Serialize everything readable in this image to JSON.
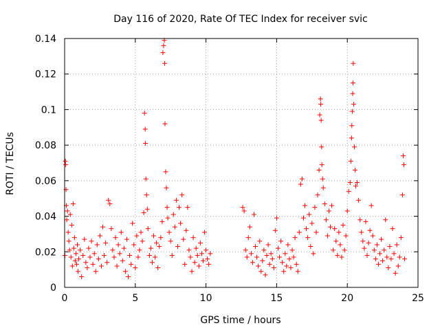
{
  "chart_data": {
    "type": "scatter",
    "title": "Day 116 of 2020, Rate Of TEC Index for receiver svic",
    "xlabel": "GPS time / hours",
    "ylabel": "ROTI / TECUs",
    "xlim": [
      0,
      25
    ],
    "ylim": [
      0,
      0.14
    ],
    "x_ticks": [
      0,
      5,
      10,
      15,
      20,
      25
    ],
    "x_tick_labels": [
      "0",
      "5",
      "10",
      "15",
      "20",
      "25"
    ],
    "y_ticks": [
      0,
      0.02,
      0.04,
      0.06,
      0.08,
      0.1,
      0.12,
      0.14
    ],
    "y_tick_labels": [
      "0",
      "0.02",
      "0.04",
      "0.06",
      "0.08",
      "0.1",
      "0.12",
      "0.14"
    ],
    "grid": true,
    "marker": "+",
    "series": [
      {
        "name": "ROTI",
        "color": "#ff0000",
        "points": [
          [
            0.02,
            0.018
          ],
          [
            0.05,
            0.071
          ],
          [
            0.08,
            0.069
          ],
          [
            0.1,
            0.055
          ],
          [
            0.12,
            0.046
          ],
          [
            0.15,
            0.038
          ],
          [
            0.2,
            0.043
          ],
          [
            0.25,
            0.031
          ],
          [
            0.3,
            0.026
          ],
          [
            0.35,
            0.021
          ],
          [
            0.4,
            0.041
          ],
          [
            0.45,
            0.017
          ],
          [
            0.5,
            0.035
          ],
          [
            0.55,
            0.012
          ],
          [
            0.6,
            0.047
          ],
          [
            0.65,
            0.022
          ],
          [
            0.7,
            0.028
          ],
          [
            0.75,
            0.015
          ],
          [
            0.8,
            0.019
          ],
          [
            0.85,
            0.013
          ],
          [
            0.9,
            0.024
          ],
          [
            0.95,
            0.009
          ],
          [
            1.0,
            0.016
          ],
          [
            1.1,
            0.021
          ],
          [
            1.2,
            0.006
          ],
          [
            1.3,
            0.018
          ],
          [
            1.4,
            0.027
          ],
          [
            1.5,
            0.014
          ],
          [
            1.6,
            0.011
          ],
          [
            1.7,
            0.022
          ],
          [
            1.8,
            0.017
          ],
          [
            1.9,
            0.026
          ],
          [
            2.0,
            0.013
          ],
          [
            2.1,
            0.019
          ],
          [
            2.2,
            0.009
          ],
          [
            2.3,
            0.024
          ],
          [
            2.4,
            0.016
          ],
          [
            2.5,
            0.029
          ],
          [
            2.6,
            0.012
          ],
          [
            2.7,
            0.034
          ],
          [
            2.8,
            0.018
          ],
          [
            2.9,
            0.025
          ],
          [
            3.0,
            0.014
          ],
          [
            3.1,
            0.049
          ],
          [
            3.2,
            0.047
          ],
          [
            3.3,
            0.033
          ],
          [
            3.4,
            0.021
          ],
          [
            3.5,
            0.017
          ],
          [
            3.6,
            0.028
          ],
          [
            3.7,
            0.012
          ],
          [
            3.8,
            0.024
          ],
          [
            3.9,
            0.019
          ],
          [
            4.0,
            0.031
          ],
          [
            4.1,
            0.015
          ],
          [
            4.2,
            0.022
          ],
          [
            4.3,
            0.009
          ],
          [
            4.4,
            0.027
          ],
          [
            4.5,
            0.006
          ],
          [
            4.6,
            0.018
          ],
          [
            4.7,
            0.013
          ],
          [
            4.8,
            0.036
          ],
          [
            4.9,
            0.024
          ],
          [
            5.0,
            0.011
          ],
          [
            5.1,
            0.029
          ],
          [
            5.2,
            0.017
          ],
          [
            5.3,
            0.021
          ],
          [
            5.4,
            0.031
          ],
          [
            5.5,
            0.026
          ],
          [
            5.6,
            0.042
          ],
          [
            5.65,
            0.098
          ],
          [
            5.7,
            0.089
          ],
          [
            5.72,
            0.081
          ],
          [
            5.75,
            0.061
          ],
          [
            5.8,
            0.052
          ],
          [
            5.85,
            0.044
          ],
          [
            5.9,
            0.033
          ],
          [
            6.0,
            0.018
          ],
          [
            6.1,
            0.022
          ],
          [
            6.2,
            0.014
          ],
          [
            6.3,
            0.029
          ],
          [
            6.4,
            0.017
          ],
          [
            6.5,
            0.025
          ],
          [
            6.6,
            0.011
          ],
          [
            6.7,
            0.023
          ],
          [
            6.8,
            0.028
          ],
          [
            6.9,
            0.037
          ],
          [
            6.95,
            0.132
          ],
          [
            7.0,
            0.136
          ],
          [
            7.05,
            0.139
          ],
          [
            7.08,
            0.126
          ],
          [
            7.1,
            0.092
          ],
          [
            7.15,
            0.065
          ],
          [
            7.2,
            0.056
          ],
          [
            7.25,
            0.045
          ],
          [
            7.3,
            0.039
          ],
          [
            7.4,
            0.031
          ],
          [
            7.5,
            0.026
          ],
          [
            7.6,
            0.018
          ],
          [
            7.7,
            0.041
          ],
          [
            7.8,
            0.034
          ],
          [
            7.9,
            0.049
          ],
          [
            8.0,
            0.023
          ],
          [
            8.1,
            0.045
          ],
          [
            8.2,
            0.036
          ],
          [
            8.3,
            0.052
          ],
          [
            8.4,
            0.027
          ],
          [
            8.5,
            0.013
          ],
          [
            8.6,
            0.032
          ],
          [
            8.7,
            0.045
          ],
          [
            8.8,
            0.021
          ],
          [
            8.9,
            0.017
          ],
          [
            9.0,
            0.009
          ],
          [
            9.1,
            0.028
          ],
          [
            9.2,
            0.014
          ],
          [
            9.3,
            0.022
          ],
          [
            9.4,
            0.018
          ],
          [
            9.5,
            0.012
          ],
          [
            9.6,
            0.025
          ],
          [
            9.7,
            0.019
          ],
          [
            9.8,
            0.015
          ],
          [
            9.9,
            0.031
          ],
          [
            10.0,
            0.021
          ],
          [
            10.1,
            0.016
          ],
          [
            10.2,
            0.013
          ],
          [
            10.3,
            0.019
          ],
          [
            12.6,
            0.045
          ],
          [
            12.7,
            0.043
          ],
          [
            12.8,
            0.021
          ],
          [
            12.9,
            0.017
          ],
          [
            13.0,
            0.028
          ],
          [
            13.1,
            0.034
          ],
          [
            13.2,
            0.019
          ],
          [
            13.3,
            0.014
          ],
          [
            13.4,
            0.041
          ],
          [
            13.5,
            0.023
          ],
          [
            13.6,
            0.017
          ],
          [
            13.7,
            0.012
          ],
          [
            13.8,
            0.026
          ],
          [
            13.9,
            0.009
          ],
          [
            14.0,
            0.015
          ],
          [
            14.1,
            0.021
          ],
          [
            14.2,
            0.007
          ],
          [
            14.3,
            0.018
          ],
          [
            14.4,
            0.024
          ],
          [
            14.5,
            0.013
          ],
          [
            14.6,
            0.019
          ],
          [
            14.7,
            0.016
          ],
          [
            14.8,
            0.011
          ],
          [
            14.9,
            0.032
          ],
          [
            15.0,
            0.039
          ],
          [
            15.1,
            0.022
          ],
          [
            15.2,
            0.017
          ],
          [
            15.3,
            0.026
          ],
          [
            15.4,
            0.014
          ],
          [
            15.5,
            0.009
          ],
          [
            15.6,
            0.019
          ],
          [
            15.7,
            0.012
          ],
          [
            15.8,
            0.024
          ],
          [
            15.9,
            0.016
          ],
          [
            16.0,
            0.011
          ],
          [
            16.1,
            0.021
          ],
          [
            16.2,
            0.017
          ],
          [
            16.3,
            0.028
          ],
          [
            16.4,
            0.013
          ],
          [
            16.5,
            0.009
          ],
          [
            16.6,
            0.031
          ],
          [
            16.7,
            0.058
          ],
          [
            16.8,
            0.061
          ],
          [
            16.9,
            0.039
          ],
          [
            17.0,
            0.046
          ],
          [
            17.1,
            0.033
          ],
          [
            17.2,
            0.028
          ],
          [
            17.3,
            0.041
          ],
          [
            17.4,
            0.023
          ],
          [
            17.5,
            0.036
          ],
          [
            17.6,
            0.019
          ],
          [
            17.7,
            0.045
          ],
          [
            17.8,
            0.031
          ],
          [
            17.9,
            0.052
          ],
          [
            18.0,
            0.066
          ],
          [
            18.05,
            0.097
          ],
          [
            18.1,
            0.106
          ],
          [
            18.12,
            0.103
          ],
          [
            18.15,
            0.094
          ],
          [
            18.18,
            0.079
          ],
          [
            18.2,
            0.069
          ],
          [
            18.25,
            0.061
          ],
          [
            18.3,
            0.056
          ],
          [
            18.4,
            0.047
          ],
          [
            18.5,
            0.038
          ],
          [
            18.6,
            0.029
          ],
          [
            18.7,
            0.043
          ],
          [
            18.8,
            0.034
          ],
          [
            18.9,
            0.046
          ],
          [
            19.0,
            0.021
          ],
          [
            19.1,
            0.033
          ],
          [
            19.2,
            0.026
          ],
          [
            19.3,
            0.018
          ],
          [
            19.4,
            0.031
          ],
          [
            19.5,
            0.024
          ],
          [
            19.6,
            0.017
          ],
          [
            19.7,
            0.035
          ],
          [
            19.8,
            0.021
          ],
          [
            19.9,
            0.029
          ],
          [
            20.0,
            0.043
          ],
          [
            20.1,
            0.054
          ],
          [
            20.2,
            0.059
          ],
          [
            20.25,
            0.071
          ],
          [
            20.3,
            0.084
          ],
          [
            20.32,
            0.091
          ],
          [
            20.35,
            0.099
          ],
          [
            20.38,
            0.109
          ],
          [
            20.4,
            0.115
          ],
          [
            20.42,
            0.126
          ],
          [
            20.45,
            0.103
          ],
          [
            20.5,
            0.079
          ],
          [
            20.55,
            0.066
          ],
          [
            20.6,
            0.057
          ],
          [
            20.7,
            0.059
          ],
          [
            20.8,
            0.049
          ],
          [
            20.9,
            0.038
          ],
          [
            21.0,
            0.031
          ],
          [
            21.1,
            0.026
          ],
          [
            21.2,
            0.022
          ],
          [
            21.3,
            0.037
          ],
          [
            21.4,
            0.018
          ],
          [
            21.5,
            0.025
          ],
          [
            21.6,
            0.032
          ],
          [
            21.7,
            0.046
          ],
          [
            21.8,
            0.029
          ],
          [
            21.9,
            0.021
          ],
          [
            22.0,
            0.016
          ],
          [
            22.1,
            0.024
          ],
          [
            22.2,
            0.013
          ],
          [
            22.3,
            0.019
          ],
          [
            22.4,
            0.027
          ],
          [
            22.5,
            0.015
          ],
          [
            22.6,
            0.021
          ],
          [
            22.7,
            0.038
          ],
          [
            22.8,
            0.017
          ],
          [
            22.9,
            0.011
          ],
          [
            23.0,
            0.023
          ],
          [
            23.1,
            0.016
          ],
          [
            23.2,
            0.033
          ],
          [
            23.3,
            0.019
          ],
          [
            23.4,
            0.008
          ],
          [
            23.5,
            0.024
          ],
          [
            23.6,
            0.012
          ],
          [
            23.7,
            0.017
          ],
          [
            23.8,
            0.028
          ],
          [
            23.9,
            0.052
          ],
          [
            23.95,
            0.074
          ],
          [
            24.0,
            0.069
          ],
          [
            24.05,
            0.016
          ]
        ]
      }
    ]
  }
}
